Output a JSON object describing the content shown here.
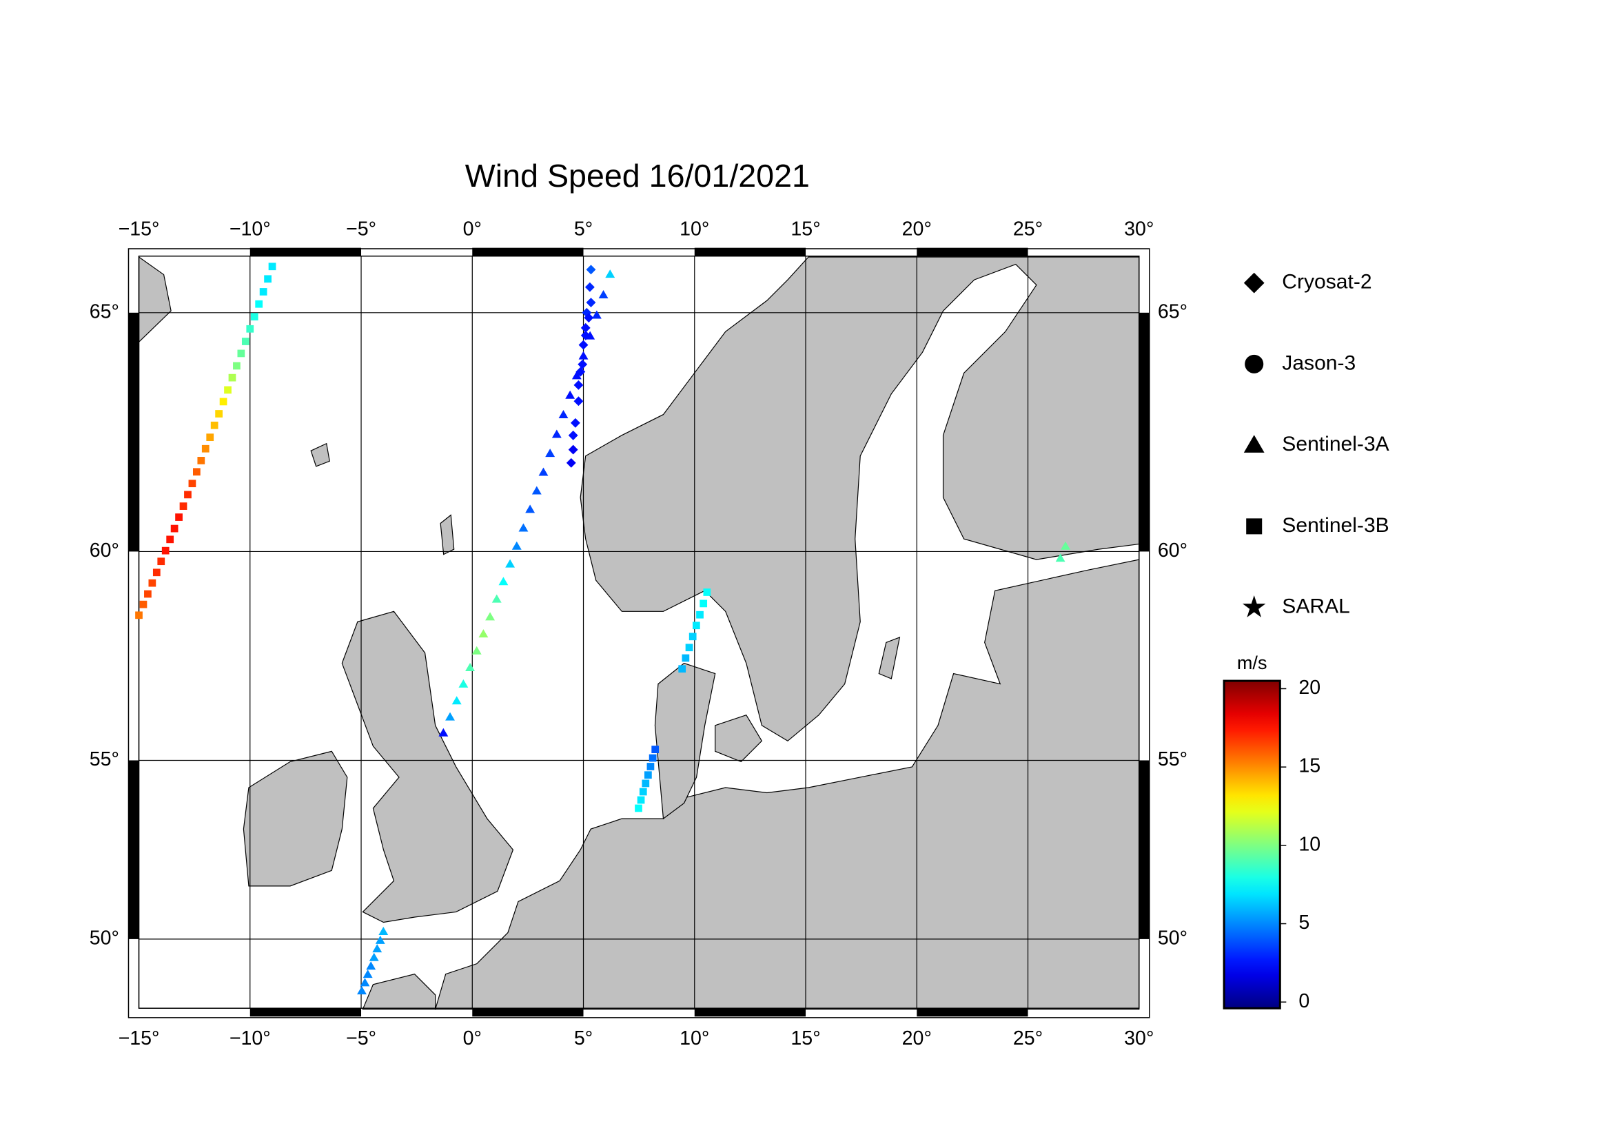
{
  "chart_data": {
    "type": "map-scatter",
    "title": "Wind Speed 16/01/2021",
    "xlim": [
      -15,
      30
    ],
    "ylim": [
      47.8,
      66.1
    ],
    "xticks": [
      {
        "value": -15,
        "label": "−15°"
      },
      {
        "value": -10,
        "label": "−10°"
      },
      {
        "value": -5,
        "label": "−5°"
      },
      {
        "value": 0,
        "label": "0°"
      },
      {
        "value": 5,
        "label": "5°"
      },
      {
        "value": 10,
        "label": "10°"
      },
      {
        "value": 15,
        "label": "15°"
      },
      {
        "value": 20,
        "label": "20°"
      },
      {
        "value": 25,
        "label": "25°"
      },
      {
        "value": 30,
        "label": "30°"
      }
    ],
    "yticks": [
      {
        "value": 50,
        "label": "50°"
      },
      {
        "value": 55,
        "label": "55°"
      },
      {
        "value": 60,
        "label": "60°"
      },
      {
        "value": 65,
        "label": "65°"
      }
    ],
    "grid": true,
    "colorbar_label": "m/s",
    "colorbar_lim": [
      -0.4,
      20.5
    ],
    "colorbar_ticks": [
      0,
      5,
      10,
      15,
      20
    ],
    "colormap": "jet",
    "series": [
      {
        "name": "Cryosat-2",
        "marker": "diamond",
        "x": [
          5.34,
          5.29,
          5.34,
          5.15,
          5.24,
          5.1,
          5.1,
          5.0,
          4.96,
          4.87,
          4.78,
          4.78,
          4.64,
          4.54,
          4.54,
          4.45
        ],
        "y": [
          65.84,
          65.5,
          65.2,
          65.0,
          64.9,
          64.7,
          64.55,
          64.36,
          63.97,
          63.82,
          63.55,
          63.22,
          62.77,
          62.51,
          62.21,
          61.93
        ],
        "values": [
          4,
          3,
          3,
          3,
          2.5,
          2.5,
          2.5,
          2.5,
          2.5,
          2.5,
          2.5,
          2.5,
          2.5,
          2.5,
          2,
          2
        ]
      },
      {
        "name": "Jason-3",
        "marker": "circle",
        "x": [],
        "y": [],
        "values": []
      },
      {
        "name": "Sentinel-3A",
        "marker": "triangle",
        "x": [
          6.2,
          5.9,
          5.6,
          5.3,
          5.0,
          4.7,
          4.4,
          4.1,
          3.8,
          3.5,
          3.2,
          2.9,
          2.6,
          2.3,
          2.0,
          1.7,
          1.4,
          1.1,
          0.8,
          0.5,
          0.2,
          -0.1,
          -0.4,
          -0.7,
          -1.0,
          -1.3,
          -4.97,
          -4.83,
          -4.7,
          -4.56,
          -4.42,
          -4.28,
          -4.14,
          -4.0,
          26.46,
          26.69
        ],
        "y": [
          65.75,
          65.35,
          64.95,
          64.54,
          64.14,
          63.74,
          63.34,
          62.94,
          62.53,
          62.13,
          61.73,
          61.33,
          60.93,
          60.52,
          60.12,
          59.72,
          59.32,
          58.92,
          58.51,
          58.11,
          57.71,
          57.31,
          56.91,
          56.5,
          56.1,
          55.7,
          48.37,
          48.63,
          48.9,
          49.16,
          49.43,
          49.7,
          49.96,
          50.23,
          59.85,
          60.12
        ],
        "values": [
          6.5,
          3.5,
          3,
          2.5,
          2.5,
          2.5,
          2.5,
          3,
          3,
          3.5,
          3.5,
          4,
          4,
          4.5,
          5,
          6.5,
          7.5,
          9,
          10,
          10.5,
          10,
          9,
          8,
          7,
          5.5,
          2.5,
          5,
          5,
          5,
          5,
          5.5,
          5.5,
          5.5,
          6,
          9,
          9.5
        ]
      },
      {
        "name": "Sentinel-3B",
        "marker": "square",
        "x": [
          -9.0,
          -9.2,
          -9.4,
          -9.6,
          -9.8,
          -10.0,
          -10.2,
          -10.4,
          -10.6,
          -10.8,
          -11.0,
          -11.2,
          -11.4,
          -11.6,
          -11.8,
          -12.0,
          -12.2,
          -12.4,
          -12.6,
          -12.8,
          -13.0,
          -13.2,
          -13.4,
          -13.6,
          -13.8,
          -14.0,
          -14.2,
          -14.4,
          -14.6,
          -14.8,
          -15.0,
          10.56,
          10.4,
          10.24,
          10.08,
          9.92,
          9.76,
          9.6,
          9.44,
          8.23,
          8.12,
          8.02,
          7.91,
          7.8,
          7.69,
          7.59,
          7.48
        ],
        "y": [
          65.9,
          65.66,
          65.41,
          65.17,
          64.92,
          64.68,
          64.43,
          64.19,
          63.94,
          63.7,
          63.45,
          63.21,
          62.96,
          62.72,
          62.47,
          62.23,
          61.98,
          61.74,
          61.49,
          61.25,
          61.0,
          60.76,
          60.51,
          60.27,
          60.02,
          59.78,
          59.53,
          59.29,
          59.04,
          58.8,
          58.55,
          59.08,
          58.82,
          58.56,
          58.31,
          58.05,
          57.79,
          57.54,
          57.28,
          55.28,
          55.06,
          54.84,
          54.62,
          54.4,
          54.18,
          53.96,
          53.74
        ],
        "values": [
          7,
          7,
          7,
          7.5,
          8,
          8.5,
          9,
          9.5,
          10,
          11,
          12,
          13,
          13.5,
          14,
          14.5,
          15,
          15.5,
          16,
          16.5,
          17,
          17,
          17.5,
          17.5,
          17.5,
          17.5,
          17,
          17,
          16.5,
          16.5,
          16,
          15.5,
          7.5,
          7.5,
          7,
          7,
          6.5,
          6.5,
          6,
          6,
          4,
          4.5,
          5,
          5.5,
          6,
          6.5,
          7,
          7.5
        ]
      },
      {
        "name": "SARAL",
        "marker": "star",
        "x": [],
        "y": [],
        "values": []
      }
    ]
  }
}
